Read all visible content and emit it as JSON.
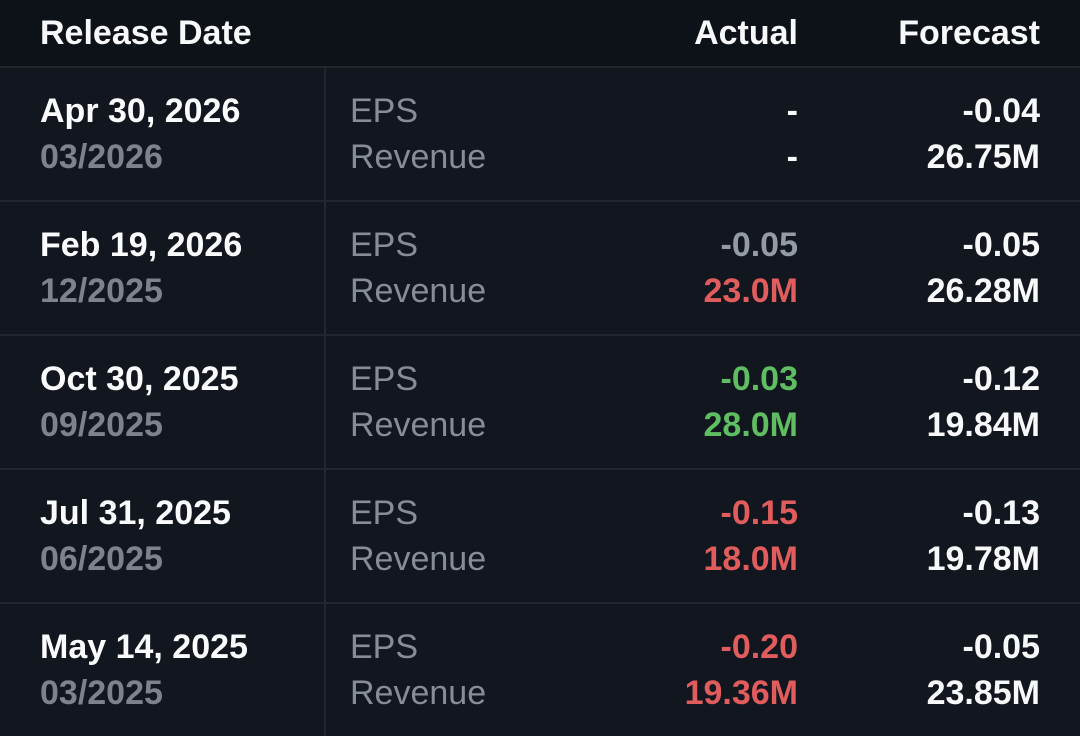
{
  "table": {
    "header": {
      "release_date": "Release Date",
      "actual": "Actual",
      "forecast": "Forecast"
    },
    "rows": [
      {
        "release_date": "Apr 30, 2026",
        "period": "03/2026",
        "metrics": [
          {
            "label": "EPS",
            "actual": "-",
            "actual_color": "white",
            "forecast": "-0.04"
          },
          {
            "label": "Revenue",
            "actual": "-",
            "actual_color": "white",
            "forecast": "26.75M"
          }
        ]
      },
      {
        "release_date": "Feb 19, 2026",
        "period": "12/2025",
        "metrics": [
          {
            "label": "EPS",
            "actual": "-0.05",
            "actual_color": "neutral",
            "forecast": "-0.05"
          },
          {
            "label": "Revenue",
            "actual": "23.0M",
            "actual_color": "miss",
            "forecast": "26.28M"
          }
        ]
      },
      {
        "release_date": "Oct 30, 2025",
        "period": "09/2025",
        "metrics": [
          {
            "label": "EPS",
            "actual": "-0.03",
            "actual_color": "beat",
            "forecast": "-0.12"
          },
          {
            "label": "Revenue",
            "actual": "28.0M",
            "actual_color": "beat",
            "forecast": "19.84M"
          }
        ]
      },
      {
        "release_date": "Jul 31, 2025",
        "period": "06/2025",
        "metrics": [
          {
            "label": "EPS",
            "actual": "-0.15",
            "actual_color": "miss",
            "forecast": "-0.13"
          },
          {
            "label": "Revenue",
            "actual": "18.0M",
            "actual_color": "miss",
            "forecast": "19.78M"
          }
        ]
      },
      {
        "release_date": "May 14, 2025",
        "period": "03/2025",
        "metrics": [
          {
            "label": "EPS",
            "actual": "-0.20",
            "actual_color": "miss",
            "forecast": "-0.05"
          },
          {
            "label": "Revenue",
            "actual": "19.36M",
            "actual_color": "miss",
            "forecast": "23.85M"
          }
        ]
      }
    ]
  },
  "colors": {
    "beat": "#5fbd62",
    "miss": "#e15d5d",
    "neutral": "#959ba3",
    "white": "#f7f8f9",
    "background": "#0d1118",
    "row_background": "#12161f",
    "divider": "#21262f"
  }
}
